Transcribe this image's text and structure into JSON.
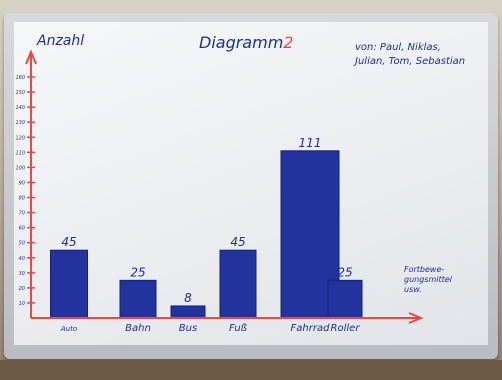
{
  "board": {
    "ylabel": "Anzahl",
    "title_main": "Diagramm",
    "title_number": "2",
    "authors_line1": "von: Paul, Niklas,",
    "authors_line2": "Julian, Tom, Sebastian",
    "xlabel_line1": "Fortbewe-",
    "xlabel_line2": "gungsmittel",
    "xlabel_line3": "usw."
  },
  "chart_data": {
    "type": "bar",
    "title": "Diagramm 2",
    "xlabel": "Fortbewegungsmittel usw.",
    "ylabel": "Anzahl",
    "categories": [
      "Auto",
      "Bahn",
      "Bus",
      "Fuß",
      "Fahrrad",
      "Roller"
    ],
    "values": [
      45,
      25,
      8,
      45,
      111,
      25
    ],
    "ylim": [
      0,
      160
    ],
    "yticks": [
      10,
      20,
      30,
      40,
      50,
      60,
      70,
      80,
      90,
      100,
      110,
      120,
      130,
      140,
      150,
      160
    ],
    "grid": false,
    "colors": {
      "bar": "#2233a0",
      "axis": "#e8484a",
      "text": "#1f2f8f"
    }
  }
}
